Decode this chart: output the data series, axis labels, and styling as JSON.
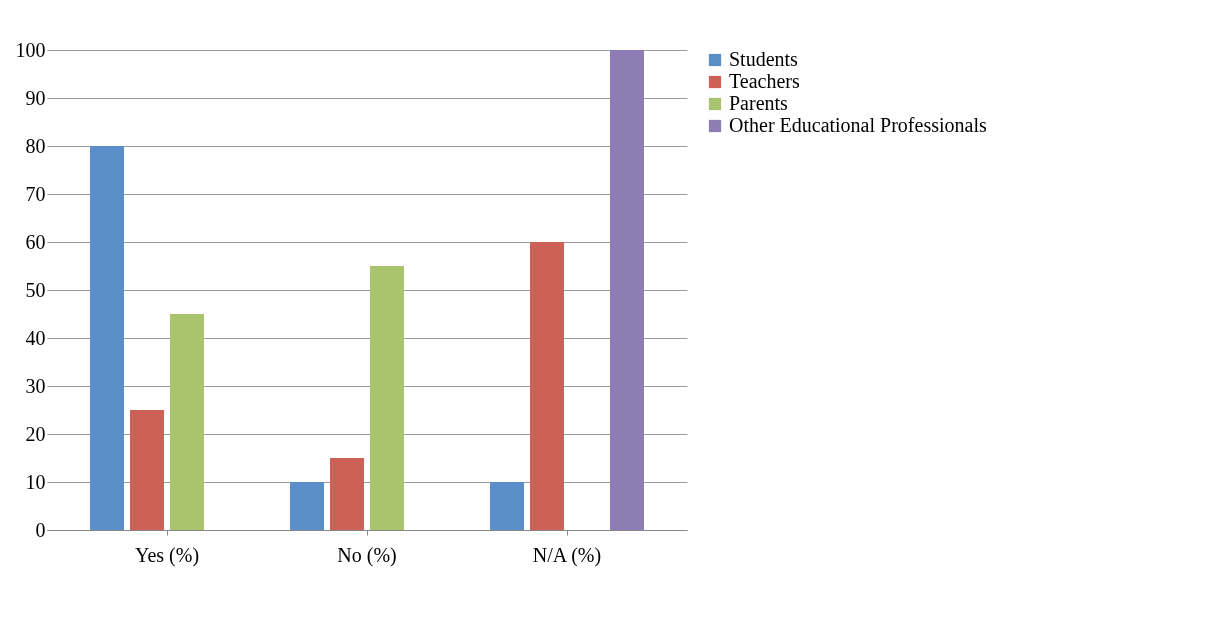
{
  "chart_data": {
    "type": "bar",
    "categories": [
      "Yes (%)",
      "No (%)",
      "N/A (%)"
    ],
    "series": [
      {
        "name": "Students",
        "color": "#5b8fc9",
        "values": [
          80,
          10,
          10
        ]
      },
      {
        "name": "Teachers",
        "color": "#cd6155",
        "values": [
          25,
          15,
          60
        ]
      },
      {
        "name": "Parents",
        "color": "#a9c46c",
        "values": [
          45,
          55,
          0
        ]
      },
      {
        "name": "Other Educational Professionals",
        "color": "#8e7cb4",
        "values": [
          0,
          0,
          100
        ]
      }
    ],
    "ylim": [
      0,
      100
    ],
    "yticks": [
      0,
      10,
      20,
      30,
      40,
      50,
      60,
      70,
      80,
      90,
      100
    ],
    "grid": "y",
    "legend": "right"
  }
}
